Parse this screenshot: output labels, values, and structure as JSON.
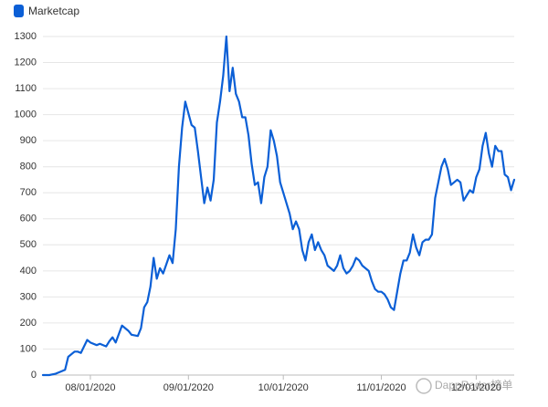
{
  "chart_data": {
    "type": "line",
    "legend": "top-left",
    "grid": true,
    "watermark": "DappRadar榜单",
    "x": [
      "07/17/2020",
      "07/19/2020",
      "07/21/2020",
      "07/22/2020",
      "07/24/2020",
      "07/25/2020",
      "07/27/2020",
      "07/28/2020",
      "07/29/2020",
      "07/30/2020",
      "07/31/2020",
      "08/01/2020",
      "08/03/2020",
      "08/04/2020",
      "08/06/2020",
      "08/07/2020",
      "08/08/2020",
      "08/09/2020",
      "08/11/2020",
      "08/12/2020",
      "08/13/2020",
      "08/14/2020",
      "08/16/2020",
      "08/17/2020",
      "08/18/2020",
      "08/19/2020",
      "08/20/2020",
      "08/21/2020",
      "08/22/2020",
      "08/23/2020",
      "08/24/2020",
      "08/25/2020",
      "08/26/2020",
      "08/27/2020",
      "08/28/2020",
      "08/29/2020",
      "08/30/2020",
      "08/31/2020",
      "09/02/2020",
      "09/03/2020",
      "09/04/2020",
      "09/05/2020",
      "09/06/2020",
      "09/07/2020",
      "09/08/2020",
      "09/09/2020",
      "09/10/2020",
      "09/11/2020",
      "09/12/2020",
      "09/13/2020",
      "09/14/2020",
      "09/15/2020",
      "09/16/2020",
      "09/17/2020",
      "09/18/2020",
      "09/19/2020",
      "09/20/2020",
      "09/21/2020",
      "09/22/2020",
      "09/23/2020",
      "09/24/2020",
      "09/25/2020",
      "09/26/2020",
      "09/27/2020",
      "09/28/2020",
      "09/29/2020",
      "09/30/2020",
      "10/01/2020",
      "10/02/2020",
      "10/03/2020",
      "10/04/2020",
      "10/05/2020",
      "10/06/2020",
      "10/07/2020",
      "10/08/2020",
      "10/09/2020",
      "10/10/2020",
      "10/11/2020",
      "10/12/2020",
      "10/13/2020",
      "10/14/2020",
      "10/15/2020",
      "10/16/2020",
      "10/17/2020",
      "10/18/2020",
      "10/19/2020",
      "10/20/2020",
      "10/21/2020",
      "10/22/2020",
      "10/23/2020",
      "10/24/2020",
      "10/25/2020",
      "10/26/2020",
      "10/27/2020",
      "10/28/2020",
      "10/29/2020",
      "10/30/2020",
      "10/31/2020",
      "11/01/2020",
      "11/02/2020",
      "11/03/2020",
      "11/04/2020",
      "11/05/2020",
      "11/06/2020",
      "11/07/2020",
      "11/08/2020",
      "11/09/2020",
      "11/10/2020",
      "11/11/2020",
      "11/12/2020",
      "11/13/2020",
      "11/14/2020",
      "11/15/2020",
      "11/16/2020",
      "11/17/2020",
      "11/18/2020",
      "11/19/2020",
      "11/20/2020",
      "11/21/2020",
      "11/22/2020",
      "11/23/2020",
      "11/24/2020",
      "11/25/2020",
      "11/26/2020",
      "11/27/2020",
      "11/28/2020",
      "11/29/2020",
      "11/30/2020",
      "12/01/2020",
      "12/02/2020",
      "12/03/2020",
      "12/04/2020",
      "12/05/2020",
      "12/06/2020",
      "12/07/2020",
      "12/08/2020",
      "12/09/2020",
      "12/10/2020",
      "12/11/2020",
      "12/12/2020",
      "12/13/2020"
    ],
    "series": [
      {
        "name": "Marketcap",
        "color": "#0b5fd6",
        "values": [
          0,
          0,
          5,
          10,
          20,
          70,
          90,
          90,
          85,
          110,
          135,
          125,
          115,
          120,
          110,
          130,
          145,
          125,
          190,
          180,
          170,
          155,
          150,
          180,
          260,
          280,
          340,
          450,
          370,
          410,
          390,
          425,
          460,
          430,
          560,
          800,
          950,
          1050,
          960,
          950,
          860,
          760,
          660,
          720,
          670,
          750,
          970,
          1050,
          1150,
          1300,
          1090,
          1180,
          1080,
          1050,
          990,
          990,
          920,
          810,
          730,
          740,
          660,
          760,
          800,
          940,
          900,
          840,
          740,
          700,
          660,
          620,
          560,
          590,
          560,
          480,
          440,
          510,
          540,
          480,
          510,
          480,
          460,
          420,
          410,
          400,
          420,
          460,
          410,
          390,
          400,
          420,
          450,
          440,
          420,
          410,
          400,
          360,
          330,
          320,
          320,
          310,
          290,
          260,
          250,
          320,
          390,
          440,
          440,
          470,
          540,
          490,
          460,
          510,
          520,
          520,
          540,
          680,
          740,
          800,
          830,
          790,
          730,
          740,
          750,
          740,
          670,
          690,
          710,
          700,
          760,
          790,
          880,
          930,
          850,
          800,
          880,
          860,
          860,
          770,
          760,
          710,
          750
        ]
      }
    ],
    "xlim": [
      "07/17/2020",
      "12/13/2020"
    ],
    "xticks": [
      "08/01/2020",
      "09/01/2020",
      "10/01/2020",
      "11/01/2020",
      "12/01/2020"
    ],
    "ylim": [
      0,
      1300
    ],
    "yticks": [
      0,
      100,
      200,
      300,
      400,
      500,
      600,
      700,
      800,
      900,
      1000,
      1100,
      1200,
      1300
    ]
  }
}
